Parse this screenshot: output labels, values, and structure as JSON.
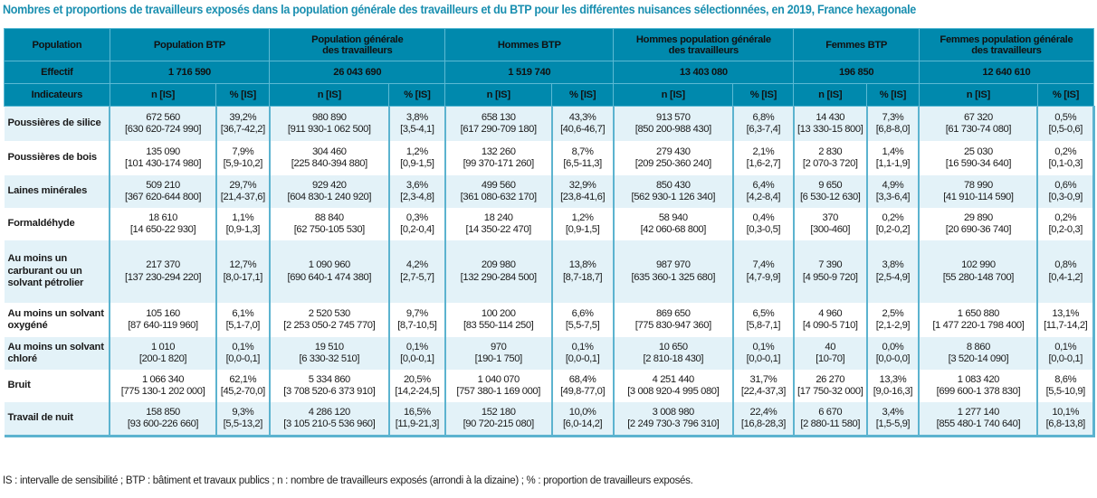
{
  "title": "Nombres et proportions de travailleurs exposés dans la population générale des travailleurs et du BTP pour les différentes nuisances sélectionnées, en 2019, France hexagonale",
  "colors": {
    "header_bg": "#0089ad",
    "title": "#1a8fb0",
    "row_alt": "#e3f2f8",
    "border": "#5cb3cf"
  },
  "header": {
    "population_label": "Population",
    "effectif_label": "Effectif",
    "indicateurs_label": "Indicateurs",
    "n_label": "n [IS]",
    "pct_label": "% [IS]",
    "groups": [
      {
        "name_line1": "Population BTP",
        "name_line2": "",
        "effectif": "1 716 590"
      },
      {
        "name_line1": "Population générale",
        "name_line2": "des travailleurs",
        "effectif": "26 043 690"
      },
      {
        "name_line1": "Hommes BTP",
        "name_line2": "",
        "effectif": "1 519 740"
      },
      {
        "name_line1": "Hommes population générale",
        "name_line2": "des travailleurs",
        "effectif": "13 403 080"
      },
      {
        "name_line1": "Femmes BTP",
        "name_line2": "",
        "effectif": "196 850"
      },
      {
        "name_line1": "Femmes population générale",
        "name_line2": "des travailleurs",
        "effectif": "12 640 610"
      }
    ]
  },
  "rows": [
    {
      "label": "Poussières de silice",
      "cells": [
        [
          "672 560",
          "[630 620-724 990]"
        ],
        [
          "39,2%",
          "[36,7-42,2]"
        ],
        [
          "980 890",
          "[911 930-1 062 500]"
        ],
        [
          "3,8%",
          "[3,5-4,1]"
        ],
        [
          "658 130",
          "[617 290-709 180]"
        ],
        [
          "43,3%",
          "[40,6-46,7]"
        ],
        [
          "913 570",
          "[850 200-988 430]"
        ],
        [
          "6,8%",
          "[6,3-7,4]"
        ],
        [
          "14 430",
          "[13 330-15 800]"
        ],
        [
          "7,3%",
          "[6,8-8,0]"
        ],
        [
          "67 320",
          "[61 730-74 080]"
        ],
        [
          "0,5%",
          "[0,5-0,6]"
        ]
      ]
    },
    {
      "label": "Poussières de bois",
      "cells": [
        [
          "135 090",
          "[101 430-174 980]"
        ],
        [
          "7,9%",
          "[5,9-10,2]"
        ],
        [
          "304 460",
          "[225 840-394 880]"
        ],
        [
          "1,2%",
          "[0,9-1,5]"
        ],
        [
          "132 260",
          "[99 370-171 260]"
        ],
        [
          "8,7%",
          "[6,5-11,3]"
        ],
        [
          "279 430",
          "[209 250-360 240]"
        ],
        [
          "2,1%",
          "[1,6-2,7]"
        ],
        [
          "2 830",
          "[2 070-3 720]"
        ],
        [
          "1,4%",
          "[1,1-1,9]"
        ],
        [
          "25 030",
          "[16 590-34 640]"
        ],
        [
          "0,2%",
          "[0,1-0,3]"
        ]
      ]
    },
    {
      "label": "Laines minérales",
      "cells": [
        [
          "509 210",
          "[367 620-644 800]"
        ],
        [
          "29,7%",
          "[21,4-37,6]"
        ],
        [
          "929 420",
          "[604 830-1 240 920]"
        ],
        [
          "3,6%",
          "[2,3-4,8]"
        ],
        [
          "499 560",
          "[361 080-632 170]"
        ],
        [
          "32,9%",
          "[23,8-41,6]"
        ],
        [
          "850 430",
          "[562 930-1 126 340]"
        ],
        [
          "6,4%",
          "[4,2-8,4]"
        ],
        [
          "9 650",
          "[6 530-12 630]"
        ],
        [
          "4,9%",
          "[3,3-6,4]"
        ],
        [
          "78 990",
          "[41 910-114 590]"
        ],
        [
          "0,6%",
          "[0,3-0,9]"
        ]
      ]
    },
    {
      "label": "Formaldéhyde",
      "cells": [
        [
          "18 610",
          "[14 650-22 930]"
        ],
        [
          "1,1%",
          "[0,9-1,3]"
        ],
        [
          "88 840",
          "[62 750-105 530]"
        ],
        [
          "0,3%",
          "[0,2-0,4]"
        ],
        [
          "18 240",
          "[14 350-22 470]"
        ],
        [
          "1,2%",
          "[0,9-1,5]"
        ],
        [
          "58 940",
          "[42 060-68 800]"
        ],
        [
          "0,4%",
          "[0,3-0,5]"
        ],
        [
          "370",
          "[300-460]"
        ],
        [
          "0,2%",
          "[0,2-0,2]"
        ],
        [
          "29 890",
          "[20 690-36 740]"
        ],
        [
          "0,2%",
          "[0,2-0,3]"
        ]
      ]
    },
    {
      "label": "Au moins un carburant ou un solvant pétrolier",
      "cells": [
        [
          "217 370",
          "[137 230-294 220]"
        ],
        [
          "12,7%",
          "[8,0-17,1]"
        ],
        [
          "1 090 960",
          "[690 640-1 474 380]"
        ],
        [
          "4,2%",
          "[2,7-5,7]"
        ],
        [
          "209 980",
          "[132 290-284 500]"
        ],
        [
          "13,8%",
          "[8,7-18,7]"
        ],
        [
          "987 970",
          "[635 360-1 325 680]"
        ],
        [
          "7,4%",
          "[4,7-9,9]"
        ],
        [
          "7 390",
          "[4 950-9 720]"
        ],
        [
          "3,8%",
          "[2,5-4,9]"
        ],
        [
          "102 990",
          "[55 280-148 700]"
        ],
        [
          "0,8%",
          "[0,4-1,2]"
        ]
      ]
    },
    {
      "label": "Au moins un solvant oxygéné",
      "cells": [
        [
          "105 160",
          "[87 640-119 960]"
        ],
        [
          "6,1%",
          "[5,1-7,0]"
        ],
        [
          "2 520 530",
          "[2 253 050-2 745 770]"
        ],
        [
          "9,7%",
          "[8,7-10,5]"
        ],
        [
          "100 200",
          "[83 550-114 250]"
        ],
        [
          "6,6%",
          "[5,5-7,5]"
        ],
        [
          "869 650",
          "[775 830-947 360]"
        ],
        [
          "6,5%",
          "[5,8-7,1]"
        ],
        [
          "4 960",
          "[4 090-5 710]"
        ],
        [
          "2,5%",
          "[2,1-2,9]"
        ],
        [
          "1 650 880",
          "[1 477 220-1 798 400]"
        ],
        [
          "13,1%",
          "[11,7-14,2]"
        ]
      ]
    },
    {
      "label": "Au moins un solvant chloré",
      "cells": [
        [
          "1 010",
          "[200-1 820]"
        ],
        [
          "0,1%",
          "[0,0-0,1]"
        ],
        [
          "19 510",
          "[6 330-32 510]"
        ],
        [
          "0,1%",
          "[0,0-0,1]"
        ],
        [
          "970",
          "[190-1 750]"
        ],
        [
          "0,1%",
          "[0,0-0,1]"
        ],
        [
          "10 650",
          "[2 810-18 430]"
        ],
        [
          "0,1%",
          "[0,0-0,1]"
        ],
        [
          "40",
          "[10-70]"
        ],
        [
          "0,0%",
          "[0,0-0,0]"
        ],
        [
          "8 860",
          "[3 520-14 090]"
        ],
        [
          "0,1%",
          "[0,0-0,1]"
        ]
      ]
    },
    {
      "label": "Bruit",
      "cells": [
        [
          "1 066 340",
          "[775 130-1 202 000]"
        ],
        [
          "62,1%",
          "[45,2-70,0]"
        ],
        [
          "5 334 860",
          "[3 708 520-6 373 910]"
        ],
        [
          "20,5%",
          "[14,2-24,5]"
        ],
        [
          "1 040 070",
          "[757 380-1 169 000]"
        ],
        [
          "68,4%",
          "[49,8-77,0]"
        ],
        [
          "4 251 440",
          "[3 008 920-4 995 080]"
        ],
        [
          "31,7%",
          "[22,4-37,3]"
        ],
        [
          "26 270",
          "[17 750-32 000]"
        ],
        [
          "13,3%",
          "[9,0-16,3]"
        ],
        [
          "1 083 420",
          "[699 600-1 378 830]"
        ],
        [
          "8,6%",
          "[5,5-10,9]"
        ]
      ]
    },
    {
      "label": "Travail de nuit",
      "cells": [
        [
          "158 850",
          "[93 600-226 660]"
        ],
        [
          "9,3%",
          "[5,5-13,2]"
        ],
        [
          "4 286 120",
          "[3 105 210-5 536 960]"
        ],
        [
          "16,5%",
          "[11,9-21,3]"
        ],
        [
          "152 180",
          "[90 720-215 080]"
        ],
        [
          "10,0%",
          "[6,0-14,2]"
        ],
        [
          "3 008 980",
          "[2 249 730-3 796 310]"
        ],
        [
          "22,4%",
          "[16,8-28,3]"
        ],
        [
          "6 670",
          "[2 880-11 580]"
        ],
        [
          "3,4%",
          "[1,5-5,9]"
        ],
        [
          "1 277 140",
          "[855 480-1 740 640]"
        ],
        [
          "10,1%",
          "[6,8-13,8]"
        ]
      ]
    }
  ],
  "footnote": "IS : intervalle de sensibilité ; BTP : bâtiment et travaux publics ; n : nombre de travailleurs exposés (arrondi à la dizaine) ; % : proportion de travailleurs exposés."
}
